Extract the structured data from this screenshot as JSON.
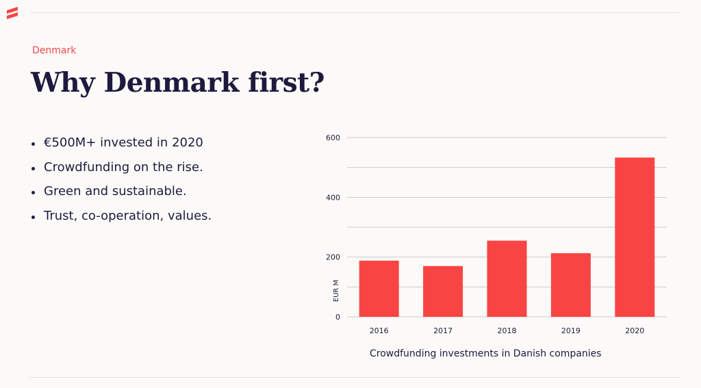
{
  "brand": {
    "accent": "#f94444",
    "text_color": "#1e1a3e",
    "logo_icon": "flag-stripes-icon"
  },
  "header": {
    "eyebrow": "Denmark",
    "title": "Why Denmark first?"
  },
  "bullets": [
    "€500M+ invested in 2020",
    "Crowdfunding on the rise.",
    "Green and sustainable.",
    "Trust, co-operation, values."
  ],
  "chart_data": {
    "type": "bar",
    "categories": [
      "2016",
      "2017",
      "2018",
      "2019",
      "2020"
    ],
    "values": [
      188,
      170,
      255,
      213,
      533
    ],
    "ylabel": "EUR M",
    "xlabel": "",
    "ylim": [
      0,
      600
    ],
    "yticks": [
      0,
      200,
      400,
      600
    ],
    "grid": true,
    "bar_color": "#f94444",
    "caption": "Crowdfunding investments in Danish companies"
  }
}
